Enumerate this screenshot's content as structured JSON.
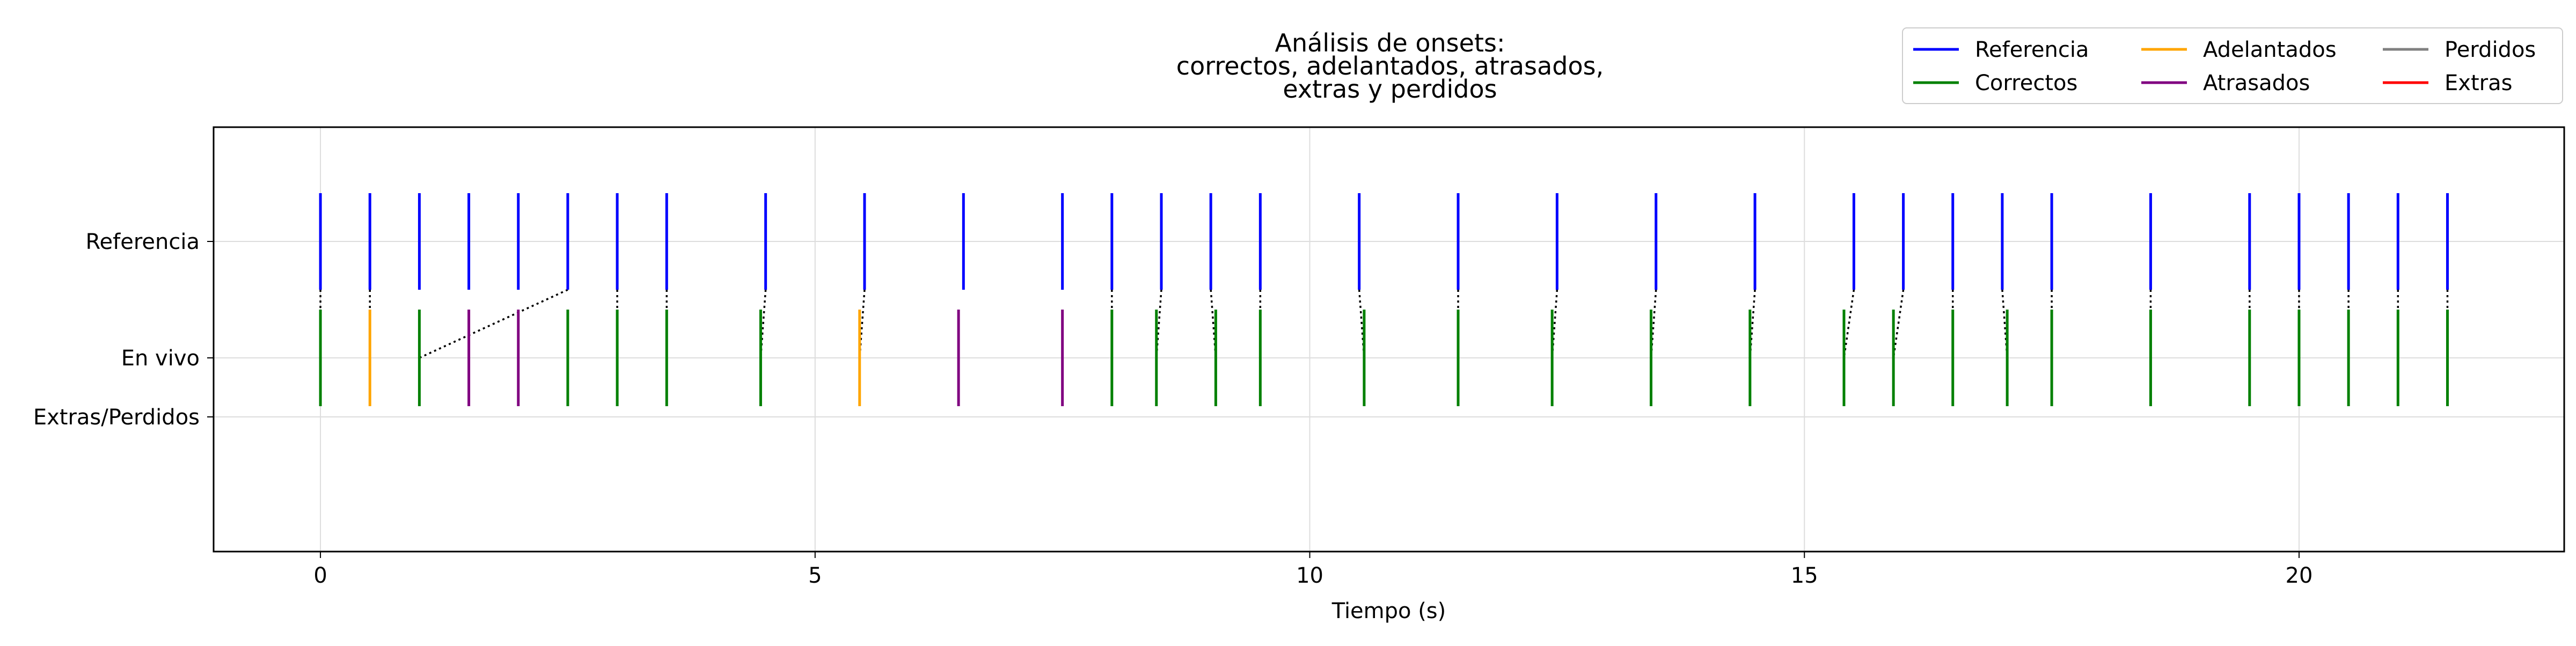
{
  "chart_data": {
    "type": "event",
    "title": [
      "Análisis de onsets:",
      "correctos, adelantados, atrasados,",
      "extras y perdidos"
    ],
    "xlabel": "Tiempo (s)",
    "ylabel": "",
    "xlim": [
      -1.08,
      22.68
    ],
    "x_ticks": [
      0,
      5,
      10,
      15,
      20
    ],
    "y_ticks": [
      "Referencia",
      "En vivo",
      "Extras/Perdidos"
    ],
    "grid": true,
    "legend_position": "top-right",
    "legend": [
      {
        "name": "Referencia",
        "color": "#0000ff"
      },
      {
        "name": "Correctos",
        "color": "#008000"
      },
      {
        "name": "Adelantados",
        "color": "#ffa500"
      },
      {
        "name": "Atrasados",
        "color": "#800080"
      },
      {
        "name": "Perdidos",
        "color": "#808080"
      },
      {
        "name": "Extras",
        "color": "#ff0000"
      }
    ],
    "series": [
      {
        "name": "Referencia",
        "color": "#0000ff",
        "x": [
          0,
          0.5,
          1,
          1.5,
          2,
          2.5,
          3,
          3.5,
          4.5,
          5.5,
          6.5,
          7.5,
          8,
          8.5,
          9,
          9.5,
          10.5,
          11.5,
          12.5,
          13.5,
          14.5,
          15.5,
          16,
          16.5,
          17,
          17.5,
          18.5,
          19.5,
          20,
          20.5,
          21,
          21.5
        ]
      },
      {
        "name": "Correctos",
        "color": "#008000",
        "x": [
          0,
          1,
          2.5,
          3,
          3.5,
          4.45,
          8,
          8.45,
          9.05,
          9.5,
          10.55,
          11.5,
          12.45,
          13.45,
          14.45,
          15.4,
          15.9,
          16.5,
          17.05,
          17.5,
          18.5,
          19.5,
          20,
          20.5,
          21,
          21.5
        ]
      },
      {
        "name": "Adelantados",
        "color": "#ffa500",
        "x": [
          0.5,
          5.45
        ]
      },
      {
        "name": "Atrasados",
        "color": "#800080",
        "x": [
          1.5,
          2.0,
          6.45,
          7.5
        ]
      },
      {
        "name": "Perdidos",
        "color": "#808080",
        "x": []
      },
      {
        "name": "Extras",
        "color": "#ff0000",
        "x": []
      }
    ],
    "matches": [
      [
        0,
        0
      ],
      [
        0.5,
        0.5
      ],
      [
        2.5,
        1
      ],
      [
        3,
        3
      ],
      [
        3.5,
        3.5
      ],
      [
        4.5,
        4.45
      ],
      [
        5.5,
        5.45
      ],
      [
        8,
        8
      ],
      [
        8.5,
        8.45
      ],
      [
        9,
        9.05
      ],
      [
        9.5,
        9.5
      ],
      [
        10.5,
        10.55
      ],
      [
        11.5,
        11.5
      ],
      [
        12.5,
        12.45
      ],
      [
        13.5,
        13.45
      ],
      [
        14.5,
        14.45
      ],
      [
        15.5,
        15.4
      ],
      [
        16,
        15.9
      ],
      [
        16.5,
        16.5
      ],
      [
        17,
        17.05
      ],
      [
        17.5,
        17.5
      ],
      [
        18.5,
        18.5
      ],
      [
        19.5,
        19.5
      ],
      [
        20,
        20
      ],
      [
        20.5,
        20.5
      ],
      [
        21,
        21
      ],
      [
        21.5,
        21.5
      ]
    ]
  }
}
